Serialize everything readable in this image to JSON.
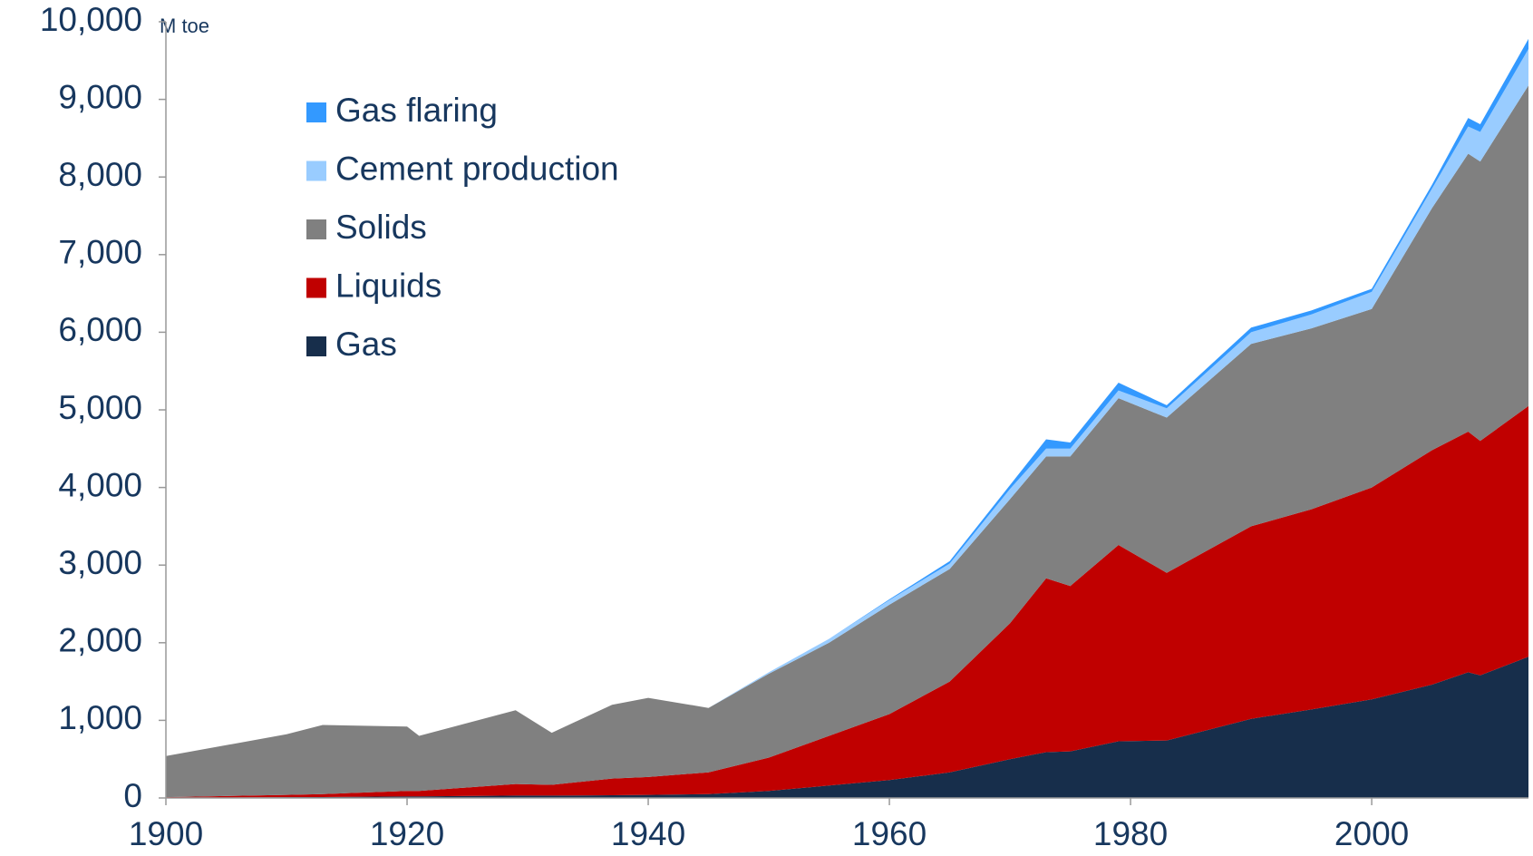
{
  "chart_data": {
    "type": "stacked_area",
    "y_label": "M toe",
    "x": [
      1900,
      1910,
      1913,
      1920,
      1921,
      1929,
      1932,
      1937,
      1940,
      1945,
      1950,
      1955,
      1960,
      1965,
      1970,
      1973,
      1975,
      1979,
      1983,
      1990,
      1995,
      2000,
      2005,
      2008,
      2009,
      2013
    ],
    "series": [
      {
        "name": "Gas",
        "color": "#172e4b",
        "values": [
          0,
          10,
          12,
          20,
          20,
          30,
          30,
          35,
          40,
          50,
          90,
          160,
          230,
          330,
          500,
          590,
          600,
          730,
          740,
          1020,
          1140,
          1270,
          1460,
          1620,
          1580,
          1820
        ]
      },
      {
        "name": "Liquids",
        "color": "#c00000",
        "values": [
          10,
          30,
          38,
          70,
          70,
          150,
          140,
          215,
          230,
          280,
          430,
          640,
          850,
          1170,
          1750,
          2240,
          2130,
          2530,
          2160,
          2480,
          2580,
          2730,
          3020,
          3100,
          3020,
          3230
        ]
      },
      {
        "name": "Solids",
        "color": "#808080",
        "values": [
          530,
          780,
          890,
          830,
          710,
          950,
          670,
          950,
          1020,
          830,
          1080,
          1200,
          1410,
          1450,
          1600,
          1570,
          1670,
          1890,
          2000,
          2350,
          2330,
          2300,
          3120,
          3580,
          3600,
          4130
        ]
      },
      {
        "name": "Cement production",
        "color": "#99ccff",
        "values": [
          0,
          0,
          0,
          0,
          0,
          0,
          0,
          0,
          0,
          0,
          20,
          50,
          60,
          70,
          130,
          100,
          100,
          100,
          120,
          150,
          180,
          220,
          250,
          350,
          380,
          470
        ]
      },
      {
        "name": "Gas flaring",
        "color": "#3399ff",
        "values": [
          0,
          0,
          0,
          0,
          0,
          0,
          0,
          0,
          0,
          0,
          0,
          0,
          10,
          30,
          50,
          120,
          80,
          100,
          40,
          60,
          50,
          40,
          50,
          110,
          100,
          130
        ]
      }
    ],
    "xlim": [
      1900,
      2013
    ],
    "xticks": [
      1900,
      1920,
      1940,
      1960,
      1980,
      2000
    ],
    "ylim": [
      0,
      10000
    ],
    "yticks": [
      0,
      {
        "value": 1000,
        "label": "1,000"
      },
      {
        "value": 2000,
        "label": "2,000"
      },
      {
        "value": 3000,
        "label": "3,000"
      },
      {
        "value": 4000,
        "label": "4,000"
      },
      {
        "value": 5000,
        "label": "5,000"
      },
      {
        "value": 6000,
        "label": "6,000"
      },
      {
        "value": 7000,
        "label": "7,000"
      },
      {
        "value": 8000,
        "label": "8,000"
      },
      {
        "value": 9000,
        "label": "9,000"
      },
      {
        "value": 10000,
        "label": "10,000"
      }
    ],
    "grid": false,
    "legend": "upper left"
  }
}
